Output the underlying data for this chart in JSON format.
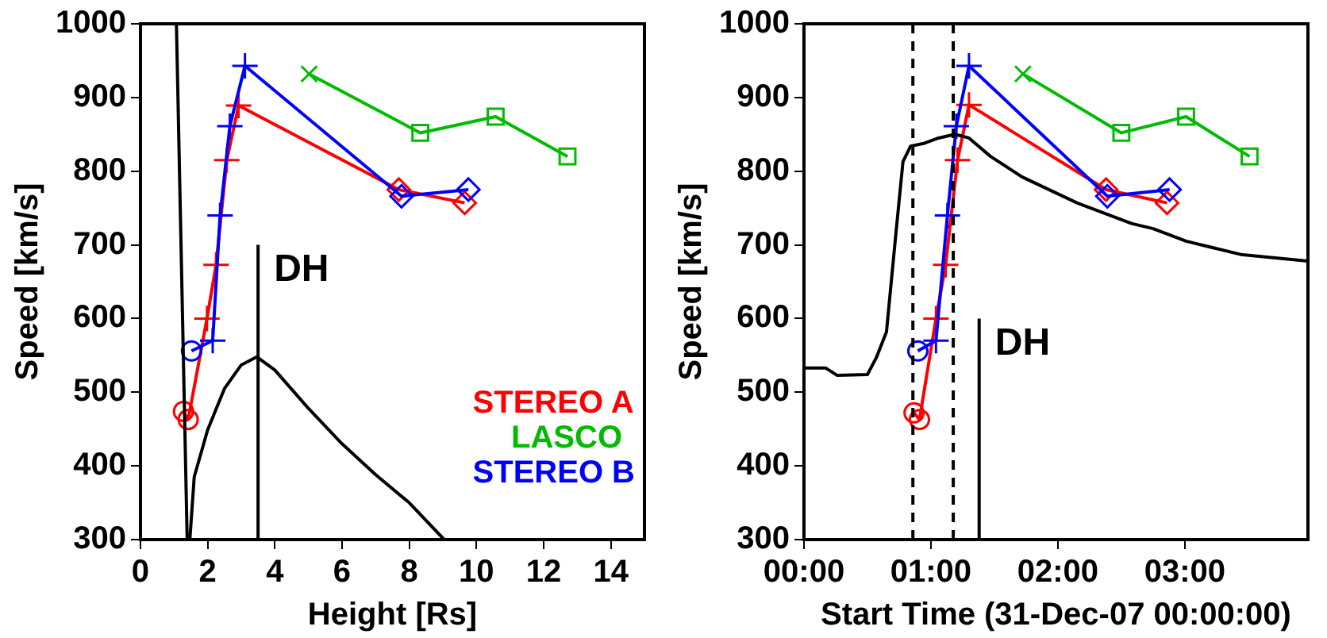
{
  "chart_data": [
    {
      "type": "line",
      "xlabel": "Height [Rs]",
      "ylabel": "Speed [km/s]",
      "xlim": [
        0,
        15
      ],
      "xticks": [
        0,
        2,
        4,
        6,
        8,
        10,
        12,
        14
      ],
      "ylim": [
        300,
        1000
      ],
      "yticks": [
        300,
        400,
        500,
        600,
        700,
        800,
        900,
        1000
      ],
      "grid": false,
      "legend": "bottom right",
      "line_style": "solid",
      "annotations": [
        {
          "text": "DH",
          "x": 3.5,
          "y": 700
        }
      ],
      "series": [
        {
          "name": "STEREO A",
          "color": "#ff0000",
          "x": [
            1.28,
            1.42,
            1.98,
            2.25,
            2.57,
            2.92,
            7.69,
            9.65
          ],
          "values": [
            474,
            463,
            600,
            673,
            815,
            889,
            775,
            757
          ],
          "marker": [
            "circle",
            "circle",
            "cross",
            "cross",
            "cross",
            "cross",
            "diamond",
            "diamond"
          ]
        },
        {
          "name": "LASCO",
          "color": "#00bb00",
          "x": [
            5.02,
            8.33,
            10.57,
            12.71
          ],
          "values": [
            932,
            852,
            874,
            820
          ],
          "marker": [
            "x",
            "square",
            "square",
            "square"
          ]
        },
        {
          "name": "STEREO B",
          "color": "#0000ff",
          "x": [
            1.52,
            2.15,
            2.37,
            2.66,
            3.11,
            7.77,
            9.76
          ],
          "values": [
            556,
            570,
            740,
            861,
            943,
            766,
            775
          ],
          "marker": [
            "circle",
            "cross",
            "cross",
            "cross",
            "cross",
            "diamond",
            "diamond"
          ]
        },
        {
          "type": "line",
          "color": "#000000",
          "x": [
            3.5,
            3.5
          ],
          "values": [
            300,
            700
          ],
          "marker": "none"
        },
        {
          "color": "#000000",
          "x": [
            1.07,
            1.39,
            1.47,
            1.6,
            2,
            2.5,
            3,
            3.46,
            4,
            5,
            6,
            7,
            8,
            9.04
          ],
          "values": [
            1000,
            300,
            300,
            385,
            449,
            505,
            537,
            548,
            530,
            478,
            430,
            388,
            350,
            300
          ],
          "marker": "none"
        }
      ]
    },
    {
      "type": "line",
      "xlabel": "Start Time (31-Dec-07 00:00:00)",
      "ylabel": "Speed [km/s]",
      "xlim": [
        0,
        3.97
      ],
      "xticks": [
        {
          "value": 0,
          "label": "00:00"
        },
        {
          "value": 1,
          "label": "01:00"
        },
        {
          "value": 2,
          "label": "02:00"
        },
        {
          "value": 3,
          "label": "03:00"
        }
      ],
      "ylim": [
        300,
        1000
      ],
      "yticks": [
        300,
        400,
        500,
        600,
        700,
        800,
        900,
        1000
      ],
      "grid": false,
      "line_style": "solid",
      "annotations": [
        {
          "text": "DH",
          "x": 1.38,
          "y": 600
        }
      ],
      "ref_lines": [
        {
          "axis": "x",
          "value": 0.858,
          "label": null,
          "color": "#000000",
          "line_style": "dashed"
        },
        {
          "axis": "x",
          "value": 1.176,
          "label": null,
          "color": "#000000",
          "line_style": "dashed"
        }
      ],
      "series": [
        {
          "color": "#ff0000",
          "x": [
            0.867,
            0.91,
            1.04,
            1.116,
            1.21,
            1.3,
            2.38,
            2.86
          ],
          "values": [
            472,
            463,
            600,
            673,
            815,
            890,
            775,
            757
          ],
          "marker": [
            "circle",
            "circle",
            "cross",
            "cross",
            "cross",
            "cross",
            "diamond",
            "diamond"
          ]
        },
        {
          "color": "#00bb00",
          "x": [
            1.725,
            2.5,
            3.01,
            3.51
          ],
          "values": [
            932,
            852,
            874,
            820
          ],
          "marker": [
            "x",
            "square",
            "square",
            "square"
          ]
        },
        {
          "color": "#0000ff",
          "x": [
            0.897,
            1.04,
            1.13,
            1.2,
            1.3,
            2.39,
            2.88
          ],
          "values": [
            556,
            570,
            740,
            861,
            943,
            766,
            775
          ],
          "marker": [
            "circle",
            "cross",
            "cross",
            "cross",
            "cross",
            "diamond",
            "diamond"
          ]
        },
        {
          "type": "line",
          "color": "#000000",
          "x": [
            1.38,
            1.38
          ],
          "values": [
            300,
            600
          ],
          "marker": "none"
        },
        {
          "color": "#000000",
          "x": [
            0,
            0.17,
            0.26,
            0.5,
            0.57,
            0.65,
            0.72,
            0.78,
            0.84,
            0.95,
            1.06,
            1.19,
            1.3,
            1.47,
            1.72,
            2.15,
            2.58,
            2.75,
            3.01,
            3.44,
            3.97
          ],
          "values": [
            533,
            533,
            523,
            524,
            547,
            582,
            708,
            813,
            834,
            838,
            845,
            850,
            845,
            820,
            792,
            757,
            729,
            722,
            705,
            687,
            678
          ],
          "marker": "none"
        }
      ]
    }
  ]
}
